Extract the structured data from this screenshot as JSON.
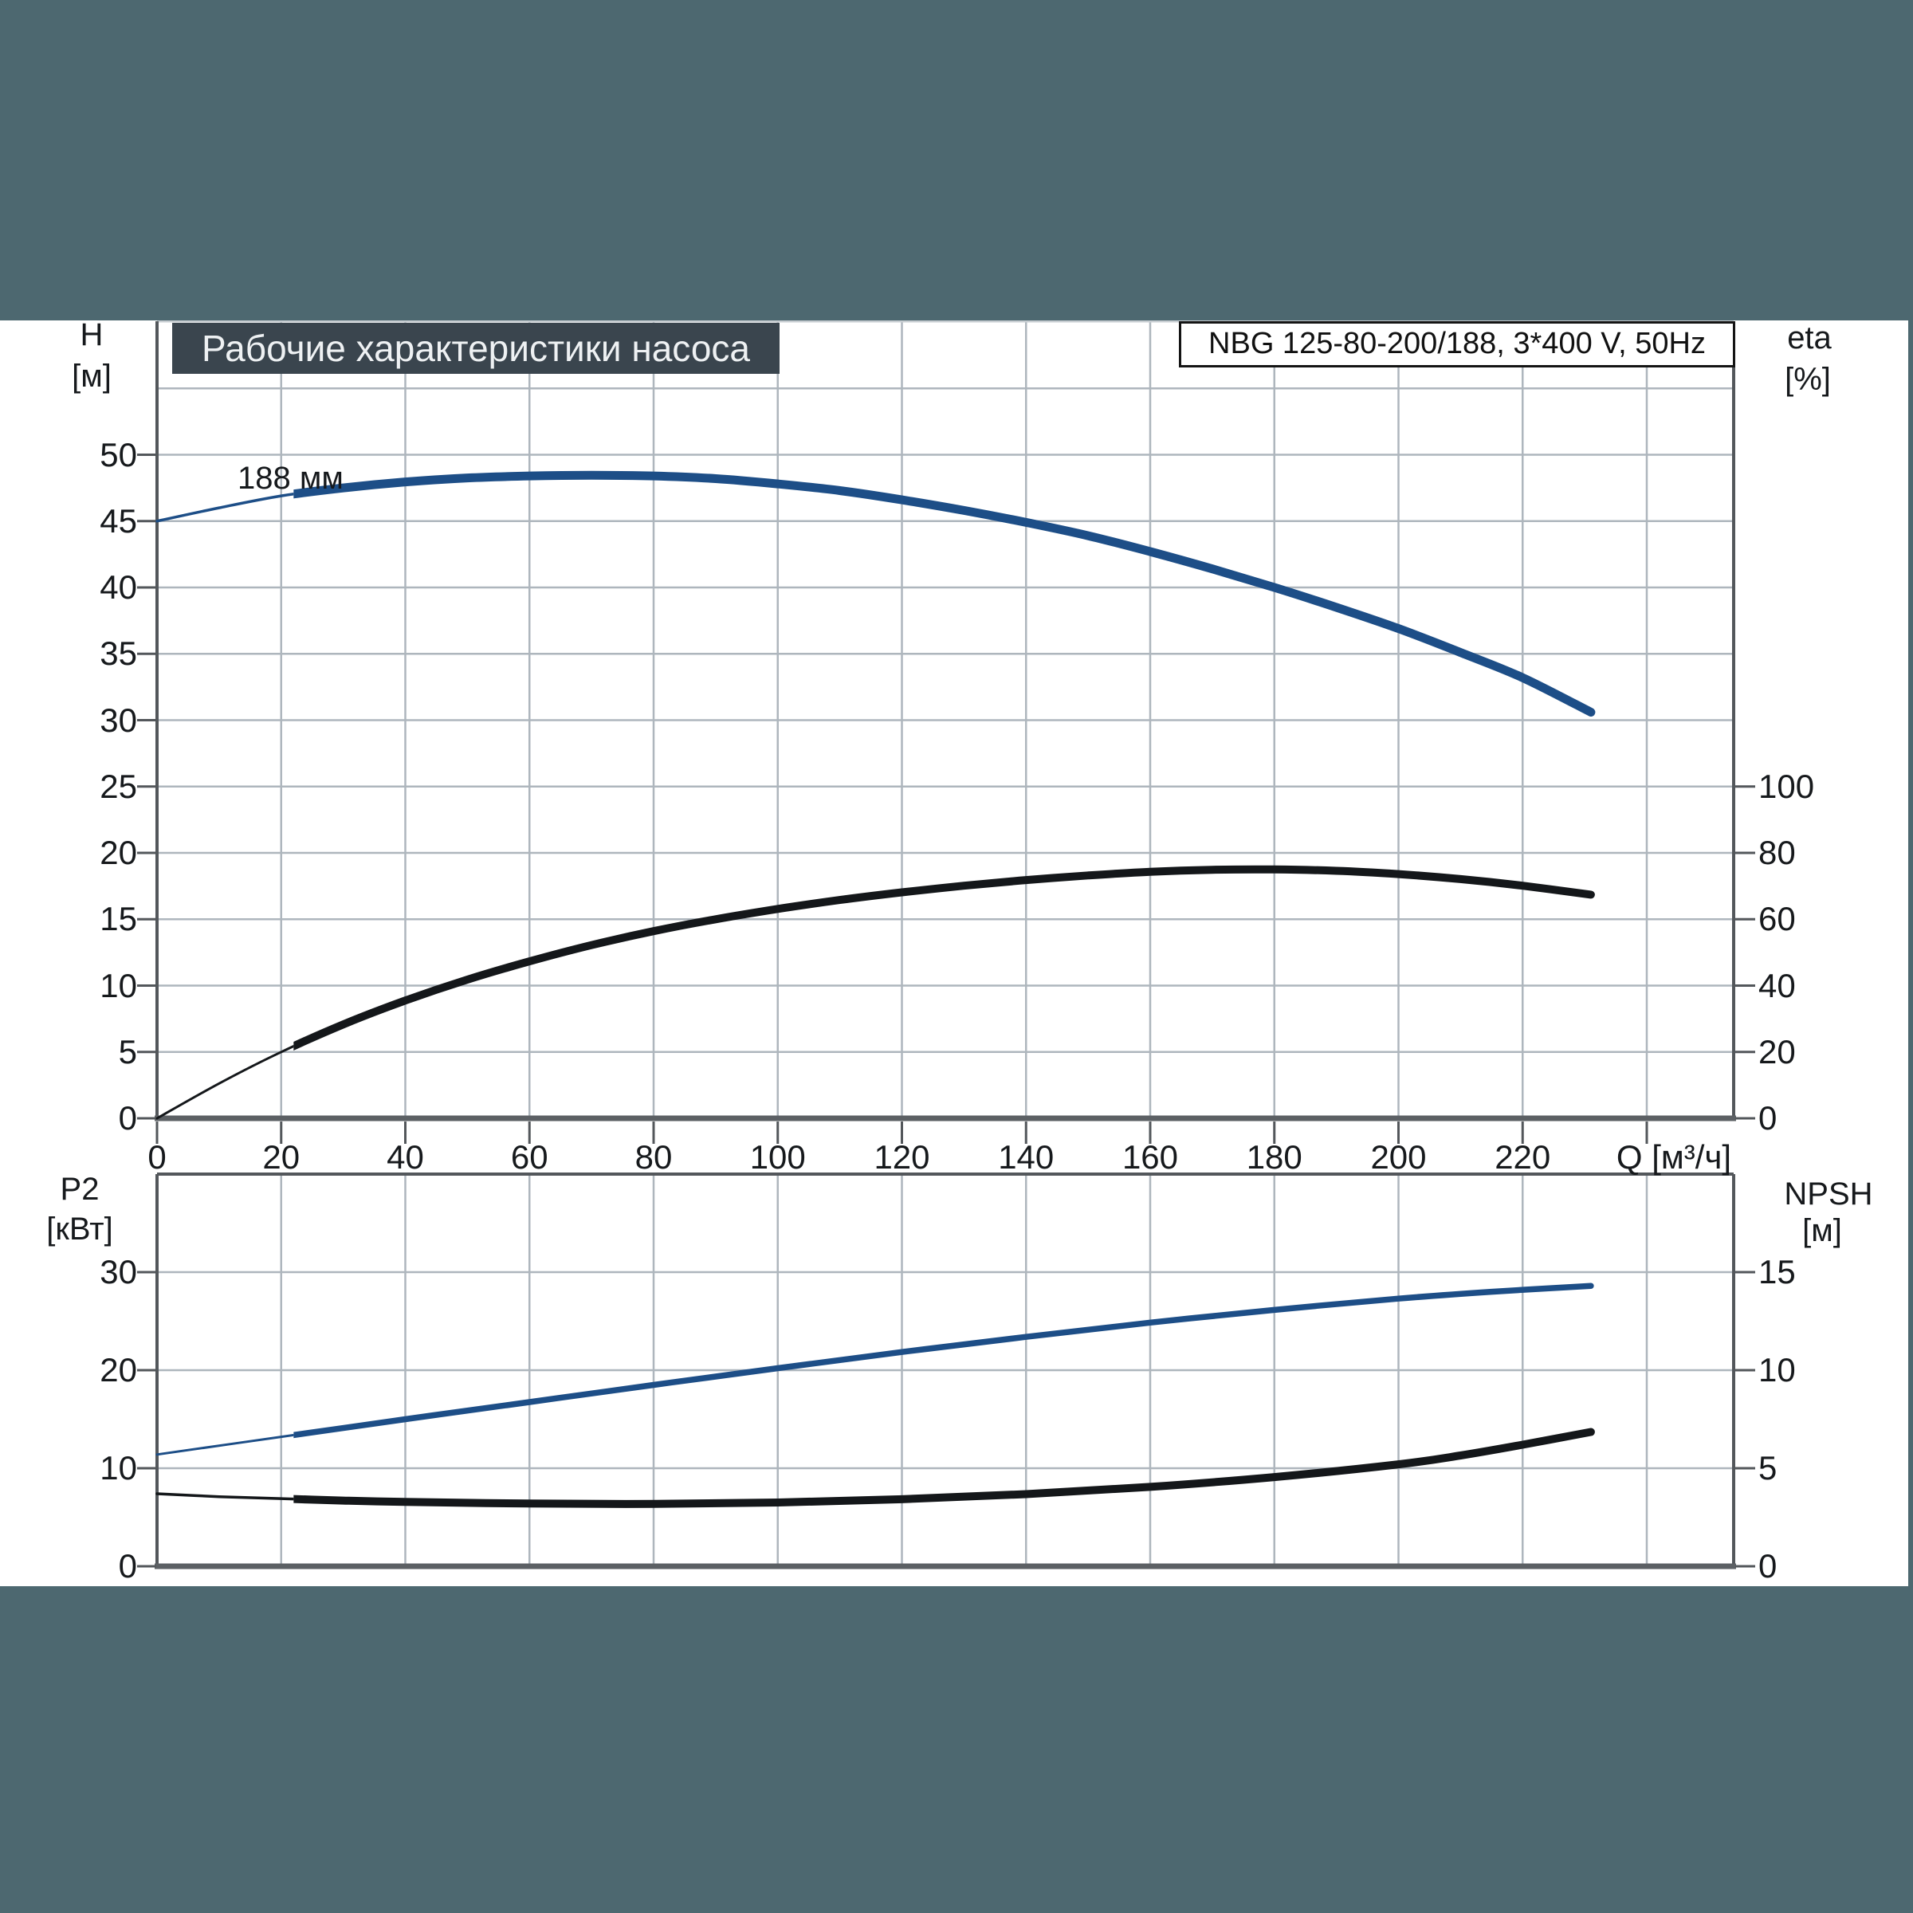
{
  "page": {
    "background": "#ffffff",
    "frame_color": "#4d6870"
  },
  "title_bar": {
    "text": "Рабочие характеристики насоса",
    "bg": "#3a454e"
  },
  "model_box": {
    "text": "NBG 125-80-200/188, 3*400 V, 50Hz"
  },
  "top_chart": {
    "curve_label": "188 мм",
    "left_axis": {
      "title": "H",
      "unit": "[м]",
      "ticks": [
        50,
        45,
        40,
        35,
        30,
        25,
        20,
        15,
        10,
        5,
        0
      ],
      "range": [
        0,
        50
      ]
    },
    "right_axis": {
      "title": "eta",
      "unit": "[%]",
      "ticks": [
        100,
        80,
        60,
        40,
        20,
        0
      ],
      "range": [
        0,
        100
      ]
    },
    "x_axis": {
      "label": "Q [м³/ч]",
      "tick_values": [
        0,
        20,
        40,
        60,
        80,
        100,
        120,
        140,
        160,
        180,
        200,
        220
      ],
      "grid_max": 240,
      "range": [
        0,
        254
      ]
    }
  },
  "bottom_chart": {
    "left_axis": {
      "title": "P2",
      "unit": "[кВт]",
      "ticks": [
        30,
        20,
        10,
        0
      ],
      "range": [
        0,
        40
      ]
    },
    "right_axis": {
      "title": "NPSH",
      "unit": "[м]",
      "ticks": [
        15,
        10,
        5,
        0
      ],
      "range": [
        0,
        20
      ]
    }
  },
  "colors": {
    "curve_blue": "#1d4e87",
    "curve_black": "#14171a",
    "grid": "#aeb6bd",
    "axis": "#53575b",
    "axis_heavy": "#5c6064",
    "plot_top_light": "#c6ccd1"
  },
  "chart_data": [
    {
      "type": "line",
      "name": "head_curve",
      "label": "188 мм",
      "color_key": "curve_blue",
      "y_axis": "H",
      "x_unit": "м³/ч",
      "y_unit": "м",
      "thin_until_q": 22,
      "x": [
        0,
        10,
        20,
        30,
        40,
        50,
        60,
        70,
        80,
        90,
        100,
        110,
        120,
        130,
        140,
        150,
        160,
        170,
        180,
        190,
        200,
        210,
        220,
        231
      ],
      "y": [
        45.0,
        46.0,
        46.9,
        47.5,
        47.95,
        48.25,
        48.4,
        48.45,
        48.4,
        48.2,
        47.8,
        47.3,
        46.6,
        45.8,
        44.9,
        43.9,
        42.7,
        41.4,
        40.0,
        38.5,
        36.9,
        35.1,
        33.2,
        30.6
      ]
    },
    {
      "type": "line",
      "name": "efficiency_curve",
      "label": "",
      "color_key": "curve_black",
      "y_axis": "eta",
      "x_unit": "м³/ч",
      "y_unit": "%",
      "thin_until_q": 22,
      "x": [
        0,
        10,
        20,
        30,
        40,
        50,
        60,
        70,
        80,
        90,
        100,
        110,
        120,
        130,
        140,
        150,
        160,
        170,
        180,
        190,
        200,
        210,
        220,
        231
      ],
      "y": [
        0,
        10.5,
        20,
        28.3,
        35.5,
        41.8,
        47.3,
        52.2,
        56.4,
        60.0,
        63.1,
        65.8,
        68.1,
        70.1,
        71.8,
        73.2,
        74.3,
        74.9,
        75.0,
        74.6,
        73.6,
        72.1,
        70.1,
        67.4
      ]
    },
    {
      "type": "line",
      "name": "power_curve_P2",
      "label": "",
      "color_key": "curve_blue",
      "y_axis": "P2",
      "x_unit": "м³/ч",
      "y_unit": "кВт",
      "thin_until_q": 22,
      "x": [
        0,
        20,
        40,
        60,
        80,
        100,
        120,
        140,
        160,
        180,
        200,
        215,
        231
      ],
      "y": [
        11.4,
        13.2,
        15.0,
        16.75,
        18.5,
        20.2,
        21.85,
        23.4,
        24.85,
        26.15,
        27.3,
        28.0,
        28.6
      ]
    },
    {
      "type": "line",
      "name": "npsh_curve",
      "label": "",
      "color_key": "curve_black",
      "y_axis": "NPSH",
      "x_unit": "м³/ч",
      "y_unit": "м",
      "thin_until_q": 22,
      "x": [
        0,
        10,
        20,
        30,
        40,
        60,
        80,
        100,
        120,
        140,
        160,
        180,
        200,
        210,
        220,
        231
      ],
      "y": [
        3.7,
        3.55,
        3.45,
        3.35,
        3.28,
        3.2,
        3.18,
        3.25,
        3.42,
        3.68,
        4.05,
        4.55,
        5.2,
        5.65,
        6.2,
        6.85
      ]
    }
  ]
}
